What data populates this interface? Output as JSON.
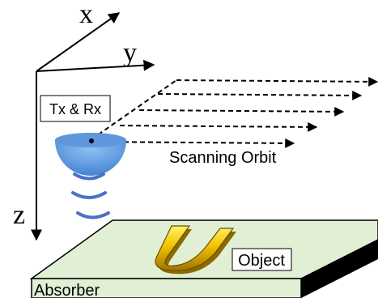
{
  "axes": {
    "x_label": "x",
    "y_label": "y",
    "z_label": "z"
  },
  "transducer": {
    "label": "Tx & Rx",
    "color": "#4a86d4"
  },
  "scan": {
    "label": "Scanning Orbit"
  },
  "object": {
    "label": "Object",
    "color": "#f2c200"
  },
  "absorber": {
    "label": "Absorber",
    "color": "#e1efd4"
  }
}
